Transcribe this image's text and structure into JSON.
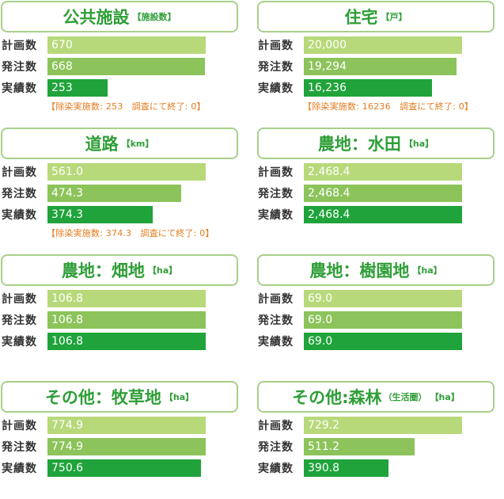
{
  "row_labels": [
    "計画数",
    "発注数",
    "実績数"
  ],
  "colors": {
    "plan": "#b7d97a",
    "order": "#8cc35a",
    "actual": "#1fa33a",
    "title": "#2e9e36",
    "note": "#e57a1a"
  },
  "chart_data": [
    {
      "type": "bar",
      "title": "公共施設",
      "unit": "【施設数】",
      "sub": "",
      "categories": [
        "計画数",
        "発注数",
        "実績数"
      ],
      "labels": [
        "670",
        "668",
        "253"
      ],
      "values": [
        670,
        668,
        253
      ],
      "note": "【除染実施数: 253　調査にて終了: 0】"
    },
    {
      "type": "bar",
      "title": "住宅",
      "unit": "【戸】",
      "sub": "",
      "categories": [
        "計画数",
        "発注数",
        "実績数"
      ],
      "labels": [
        "20,000",
        "19,294",
        "16,236"
      ],
      "values": [
        20000,
        19294,
        16236
      ],
      "note": "【除染実施数: 16236　調査にて終了: 0】"
    },
    {
      "type": "bar",
      "title": "道路",
      "unit": "【km】",
      "sub": "",
      "categories": [
        "計画数",
        "発注数",
        "実績数"
      ],
      "labels": [
        "561.0",
        "474.3",
        "374.3"
      ],
      "values": [
        561.0,
        474.3,
        374.3
      ],
      "note": "【除染実施数: 374.3　調査にて終了: 0】"
    },
    {
      "type": "bar",
      "title": "農地：水田",
      "unit": "【ha】",
      "sub": "",
      "categories": [
        "計画数",
        "発注数",
        "実績数"
      ],
      "labels": [
        "2,468.4",
        "2,468.4",
        "2,468.4"
      ],
      "values": [
        2468.4,
        2468.4,
        2468.4
      ],
      "note": ""
    },
    {
      "type": "bar",
      "title": "農地：畑地",
      "unit": "【ha】",
      "sub": "",
      "categories": [
        "計画数",
        "発注数",
        "実績数"
      ],
      "labels": [
        "106.8",
        "106.8",
        "106.8"
      ],
      "values": [
        106.8,
        106.8,
        106.8
      ],
      "note": ""
    },
    {
      "type": "bar",
      "title": "農地：樹園地",
      "unit": "【ha】",
      "sub": "",
      "categories": [
        "計画数",
        "発注数",
        "実績数"
      ],
      "labels": [
        "69.0",
        "69.0",
        "69.0"
      ],
      "values": [
        69.0,
        69.0,
        69.0
      ],
      "note": ""
    },
    {
      "type": "bar",
      "title": "その他：牧草地",
      "unit": "【ha】",
      "sub": "",
      "categories": [
        "計画数",
        "発注数",
        "実績数"
      ],
      "labels": [
        "774.9",
        "774.9",
        "750.6"
      ],
      "values": [
        774.9,
        774.9,
        750.6
      ],
      "note": ""
    },
    {
      "type": "bar",
      "title": "その他:森林",
      "unit": "【ha】",
      "sub": "（生活圏）",
      "categories": [
        "計画数",
        "発注数",
        "実績数"
      ],
      "labels": [
        "729.2",
        "511.2",
        "390.8"
      ],
      "values": [
        729.2,
        511.2,
        390.8
      ],
      "note": ""
    }
  ]
}
